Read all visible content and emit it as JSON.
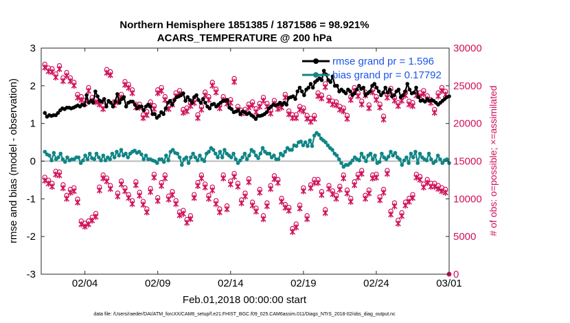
{
  "chart_data": {
    "type": "line",
    "title_line1": "Northern Hemisphere 1851385 / 1871586 = 98.921%",
    "title_line2": "ACARS_TEMPERATURE @ 200 hPa",
    "ylabel_left": "rmse and bias (model - observation)",
    "ylabel_right": "# of obs: o=possible; ×=assimilated",
    "xlabel": "Feb.01,2018 00:00:00 start",
    "footnote": "data file: /Users/raeder/DAI/ATM_forcXX/CAM6_setup/f.e21.FHIST_BGC.f09_025.CAM6assim.011/Diags_NTrS_2018-02/obs_diag_output.nc",
    "ylim_left": [
      -3,
      3
    ],
    "ylim_right": [
      0,
      30000
    ],
    "xlim": [
      0.5,
      28.5
    ],
    "yticks_left": [
      "-3",
      "-2",
      "-1",
      "0",
      "1",
      "2",
      "3"
    ],
    "yticks_right": [
      "0",
      "5000",
      "10000",
      "15000",
      "20000",
      "25000",
      "30000"
    ],
    "xticks": [
      {
        "label": "02/04",
        "value": 3.5
      },
      {
        "label": "02/09",
        "value": 8.5
      },
      {
        "label": "02/14",
        "value": 13.5
      },
      {
        "label": "02/19",
        "value": 18.5
      },
      {
        "label": "02/24",
        "value": 23.5
      },
      {
        "label": "03/01",
        "value": 28.5
      }
    ],
    "legend": [
      "rmse grand pr = 1.596",
      "bias grand pr = 0.17792"
    ],
    "series_colors": {
      "rmse": "#000000",
      "bias": "#108585",
      "obs": "#d0105a",
      "zero": "#bbbbbb"
    },
    "rmse": [
      1.28,
      1.18,
      1.22,
      1.2,
      1.22,
      1.22,
      1.28,
      1.35,
      1.4,
      1.38,
      1.42,
      1.42,
      1.4,
      1.42,
      1.45,
      1.48,
      1.45,
      1.5,
      1.48,
      1.75,
      1.55,
      1.6,
      1.55,
      1.85,
      1.72,
      1.6,
      1.58,
      1.65,
      1.45,
      1.6,
      1.55,
      1.45,
      1.58,
      1.78,
      1.55,
      1.65,
      1.7,
      1.45,
      1.55,
      1.58,
      1.58,
      1.5,
      1.4,
      1.45,
      1.45,
      1.35,
      1.45,
      1.5,
      1.45,
      1.25,
      1.25,
      1.15,
      1.2,
      1.3,
      1.25,
      1.4,
      1.55,
      1.6,
      1.5,
      1.62,
      1.7,
      1.72,
      1.75,
      1.8,
      1.6,
      1.7,
      1.62,
      1.55,
      1.7,
      1.75,
      1.62,
      1.55,
      1.65,
      1.55,
      1.45,
      1.4,
      1.5,
      1.52,
      1.45,
      1.5,
      1.55,
      1.6,
      1.6,
      1.62,
      1.42,
      1.38,
      1.3,
      1.32,
      1.35,
      1.25,
      1.32,
      1.3,
      1.25,
      1.28,
      1.22,
      1.18,
      1.12,
      1.2,
      1.2,
      1.22,
      1.25,
      1.3,
      1.4,
      1.45,
      1.5,
      1.48,
      1.5,
      1.55,
      1.5,
      1.55,
      1.5,
      1.68,
      1.7,
      1.72,
      1.65,
      1.85,
      1.95,
      1.85,
      1.75,
      1.9,
      1.95,
      2.05,
      1.95,
      2.1,
      2.15,
      2.2,
      2.15,
      2.4,
      2.3,
      2.15,
      2.1,
      2.25,
      2.0,
      2.0,
      1.85,
      1.9,
      1.85,
      1.8,
      1.9,
      1.85,
      1.75,
      1.8,
      1.9,
      2.0,
      1.92,
      1.95,
      1.75,
      1.8,
      1.85,
      2.0,
      2.05,
      1.95,
      1.85,
      1.75,
      1.82,
      1.95,
      1.82,
      1.9,
      1.72,
      1.75,
      1.85,
      1.9,
      1.7,
      1.75,
      1.85,
      2.05,
      1.9,
      1.8,
      1.82,
      1.95,
      1.7,
      1.6,
      1.62,
      1.58,
      1.65,
      1.6,
      1.62,
      1.6,
      1.55,
      1.5,
      1.55,
      1.6,
      1.65,
      1.7,
      1.72
    ],
    "bias": [
      0.25,
      0.18,
      0.15,
      0.02,
      0.22,
      0.05,
      0.1,
      0.2,
      0.05,
      -0.02,
      0.1,
      0.02,
      0.05,
      0.05,
      0.1,
      0.1,
      -0.05,
      0.02,
      0.15,
      0.05,
      0.2,
      0.08,
      0.05,
      0.2,
      0.1,
      0.02,
      0.15,
      0.02,
      0.1,
      0.05,
      0.2,
      0.1,
      0.25,
      0.15,
      0.3,
      0.15,
      0.2,
      0.1,
      0.2,
      0.25,
      0.28,
      0.22,
      0.25,
      0.18,
      0.05,
      0.15,
      0.05,
      0.05,
      0.02,
      0.0,
      -0.05,
      0.05,
      0.05,
      -0.02,
      0.15,
      0.02,
      0.25,
      0.3,
      0.22,
      0.2,
      0.1,
      -0.1,
      0.05,
      0.1,
      -0.05,
      0.1,
      0.2,
      0.1,
      0.02,
      0.15,
      0.05,
      0.0,
      0.2,
      0.25,
      0.35,
      0.3,
      0.2,
      0.1,
      0.25,
      0.1,
      0.3,
      0.2,
      0.15,
      0.1,
      0.2,
      0.05,
      -0.05,
      0.02,
      0.1,
      0.2,
      0.05,
      0.15,
      0.3,
      0.25,
      0.15,
      0.08,
      0.2,
      0.35,
      0.25,
      0.2,
      0.2,
      0.1,
      0.15,
      0.05,
      0.05,
      0.2,
      0.15,
      0.25,
      0.35,
      0.3,
      0.3,
      0.42,
      0.4,
      0.5,
      0.52,
      0.42,
      0.5,
      0.4,
      0.55,
      0.4,
      0.68,
      0.75,
      0.7,
      0.6,
      0.55,
      0.5,
      0.42,
      0.35,
      0.3,
      0.2,
      0.15,
      0.05,
      -0.05,
      -0.15,
      -0.1,
      -0.1,
      -0.05,
      0.02,
      0.1,
      0.05,
      0.02,
      0.2,
      0.1,
      0.0,
      0.15,
      0.2,
      0.05,
      0.15,
      -0.05,
      -0.02,
      0.2,
      0.1,
      0.05,
      0.12,
      0.25,
      0.15,
      0.22,
      0.1,
      0.05,
      -0.1,
      0.02,
      0.1,
      -0.05,
      0.2,
      0.1,
      0.25,
      -0.05,
      0.2,
      0.1,
      0.05,
      0.02,
      0.2,
      0.05,
      -0.05,
      0.0,
      0.15,
      0.05,
      -0.05,
      0.02,
      0.05,
      -0.05
    ],
    "obs": [
      [
        0.75,
        27600
      ],
      [
        1.0,
        27100
      ],
      [
        1.25,
        27000
      ],
      [
        1.5,
        26300
      ],
      [
        1.75,
        27400
      ],
      [
        2.0,
        25800
      ],
      [
        2.25,
        26500
      ],
      [
        2.5,
        25800
      ],
      [
        2.75,
        25200
      ],
      [
        3.0,
        23600
      ],
      [
        3.25,
        23300
      ],
      [
        3.5,
        22800
      ],
      [
        3.75,
        24500
      ],
      [
        4.0,
        23200
      ],
      [
        4.25,
        23000
      ],
      [
        4.5,
        22700
      ],
      [
        4.75,
        22100
      ],
      [
        5.0,
        26900
      ],
      [
        5.25,
        26600
      ],
      [
        5.5,
        22600
      ],
      [
        5.75,
        23000
      ],
      [
        6.0,
        23600
      ],
      [
        6.25,
        25300
      ],
      [
        6.5,
        24900
      ],
      [
        6.75,
        24200
      ],
      [
        7.0,
        22300
      ],
      [
        7.25,
        22300
      ],
      [
        7.5,
        20900
      ],
      [
        7.75,
        21300
      ],
      [
        8.0,
        22600
      ],
      [
        8.25,
        22100
      ],
      [
        8.5,
        24200
      ],
      [
        8.75,
        24500
      ],
      [
        9.0,
        23300
      ],
      [
        9.25,
        22100
      ],
      [
        9.5,
        22700
      ],
      [
        9.75,
        23800
      ],
      [
        10.0,
        24100
      ],
      [
        10.25,
        21600
      ],
      [
        10.5,
        21800
      ],
      [
        10.75,
        22500
      ],
      [
        11.0,
        22900
      ],
      [
        11.25,
        20900
      ],
      [
        11.5,
        22000
      ],
      [
        11.75,
        23900
      ],
      [
        12.0,
        23300
      ],
      [
        12.25,
        25200
      ],
      [
        12.5,
        24300
      ],
      [
        12.75,
        22200
      ],
      [
        13.0,
        23300
      ],
      [
        13.25,
        22800
      ],
      [
        13.5,
        22900
      ],
      [
        13.75,
        25700
      ],
      [
        14.0,
        22000
      ],
      [
        14.25,
        21500
      ],
      [
        14.5,
        21600
      ],
      [
        14.75,
        22300
      ],
      [
        15.0,
        22600
      ],
      [
        15.25,
        21700
      ],
      [
        15.5,
        22400
      ],
      [
        15.75,
        23200
      ],
      [
        16.0,
        22400
      ],
      [
        16.25,
        21500
      ],
      [
        16.5,
        22800
      ],
      [
        16.75,
        22100
      ],
      [
        17.0,
        22300
      ],
      [
        17.25,
        23600
      ],
      [
        17.5,
        21400
      ],
      [
        17.75,
        20900
      ],
      [
        18.0,
        20900
      ],
      [
        18.25,
        22000
      ],
      [
        18.5,
        21800
      ],
      [
        18.75,
        20800
      ],
      [
        19.0,
        20400
      ],
      [
        19.25,
        20800
      ],
      [
        19.5,
        23800
      ],
      [
        19.75,
        23500
      ],
      [
        20.0,
        25000
      ],
      [
        20.25,
        23200
      ],
      [
        20.5,
        22700
      ],
      [
        20.75,
        22600
      ],
      [
        21.0,
        22000
      ],
      [
        21.25,
        21800
      ],
      [
        21.5,
        20800
      ],
      [
        21.75,
        23300
      ],
      [
        22.0,
        24500
      ],
      [
        22.25,
        23800
      ],
      [
        22.5,
        22700
      ],
      [
        22.75,
        23900
      ],
      [
        23.0,
        22200
      ],
      [
        23.25,
        24300
      ],
      [
        23.5,
        23300
      ],
      [
        23.75,
        22300
      ],
      [
        24.0,
        20700
      ],
      [
        24.25,
        23600
      ],
      [
        24.5,
        24400
      ],
      [
        24.75,
        23200
      ],
      [
        25.0,
        22500
      ],
      [
        25.25,
        23200
      ],
      [
        25.5,
        23900
      ],
      [
        25.75,
        22700
      ],
      [
        26.0,
        22500
      ],
      [
        26.25,
        23900
      ],
      [
        26.5,
        23800
      ],
      [
        26.75,
        24100
      ],
      [
        27.0,
        23400
      ],
      [
        27.25,
        22900
      ],
      [
        27.5,
        21600
      ],
      [
        27.75,
        23800
      ],
      [
        28.0,
        24500
      ],
      [
        28.25,
        24000
      ],
      [
        0.75,
        12600
      ],
      [
        1.0,
        12200
      ],
      [
        1.25,
        11800
      ],
      [
        1.5,
        13400
      ],
      [
        1.75,
        13300
      ],
      [
        2.0,
        11600
      ],
      [
        2.25,
        10200
      ],
      [
        2.5,
        11000
      ],
      [
        2.75,
        11200
      ],
      [
        3.0,
        9700
      ],
      [
        3.25,
        6800
      ],
      [
        3.5,
        6500
      ],
      [
        3.75,
        6800
      ],
      [
        4.0,
        7300
      ],
      [
        4.25,
        7800
      ],
      [
        4.5,
        11300
      ],
      [
        4.75,
        12900
      ],
      [
        5.0,
        12500
      ],
      [
        5.25,
        11500
      ],
      [
        5.75,
        10500
      ],
      [
        6.0,
        12100
      ],
      [
        6.25,
        11200
      ],
      [
        6.5,
        10300
      ],
      [
        6.75,
        9500
      ],
      [
        7.0,
        12000
      ],
      [
        7.25,
        10600
      ],
      [
        7.5,
        9400
      ],
      [
        7.75,
        8400
      ],
      [
        8.0,
        11100
      ],
      [
        8.25,
        13000
      ],
      [
        8.5,
        9900
      ],
      [
        8.75,
        11900
      ],
      [
        9.0,
        12900
      ],
      [
        9.25,
        10100
      ],
      [
        9.5,
        10700
      ],
      [
        9.75,
        9500
      ],
      [
        10.0,
        8000
      ],
      [
        10.25,
        8200
      ],
      [
        10.5,
        7000
      ],
      [
        10.75,
        7500
      ],
      [
        11.0,
        10300
      ],
      [
        11.25,
        11900
      ],
      [
        11.5,
        12900
      ],
      [
        11.75,
        11700
      ],
      [
        12.0,
        10200
      ],
      [
        12.25,
        11300
      ],
      [
        12.5,
        9500
      ],
      [
        12.75,
        8400
      ],
      [
        13.0,
        12900
      ],
      [
        13.25,
        8800
      ],
      [
        13.5,
        12100
      ],
      [
        13.75,
        13100
      ],
      [
        14.0,
        11800
      ],
      [
        14.25,
        9600
      ],
      [
        14.5,
        10500
      ],
      [
        14.75,
        12400
      ],
      [
        15.0,
        9300
      ],
      [
        15.25,
        8500
      ],
      [
        15.5,
        11000
      ],
      [
        15.75,
        7500
      ],
      [
        16.0,
        9200
      ],
      [
        16.25,
        11500
      ],
      [
        16.5,
        12800
      ],
      [
        16.75,
        12300
      ],
      [
        17.0,
        9800
      ],
      [
        17.25,
        9000
      ],
      [
        17.5,
        8600
      ],
      [
        17.75,
        5800
      ],
      [
        18.0,
        6400
      ],
      [
        18.25,
        8900
      ],
      [
        18.5,
        11200
      ],
      [
        18.75,
        7500
      ],
      [
        19.0,
        11600
      ],
      [
        19.25,
        12300
      ],
      [
        19.5,
        12300
      ],
      [
        19.75,
        10700
      ],
      [
        20.0,
        8300
      ],
      [
        20.25,
        11500
      ],
      [
        20.5,
        10800
      ],
      [
        20.75,
        10200
      ],
      [
        21.0,
        11400
      ],
      [
        21.25,
        12900
      ],
      [
        21.5,
        10900
      ],
      [
        21.75,
        9800
      ],
      [
        22.0,
        12000
      ],
      [
        22.25,
        13000
      ],
      [
        22.5,
        13500
      ],
      [
        22.75,
        10200
      ],
      [
        23.0,
        10900
      ],
      [
        23.25,
        12900
      ],
      [
        23.5,
        13000
      ],
      [
        23.75,
        10000
      ],
      [
        24.0,
        11000
      ],
      [
        24.25,
        13500
      ],
      [
        24.5,
        8100
      ],
      [
        24.75,
        9200
      ],
      [
        25.0,
        6900
      ],
      [
        25.25,
        7900
      ],
      [
        25.5,
        9300
      ],
      [
        25.75,
        9800
      ],
      [
        26.0,
        10300
      ],
      [
        26.25,
        13000
      ],
      [
        26.5,
        12700
      ],
      [
        26.75,
        11700
      ],
      [
        27.0,
        12300
      ],
      [
        27.25,
        11800
      ],
      [
        27.5,
        11800
      ],
      [
        27.75,
        11500
      ],
      [
        28.0,
        11200
      ],
      [
        28.25,
        11000
      ]
    ]
  }
}
